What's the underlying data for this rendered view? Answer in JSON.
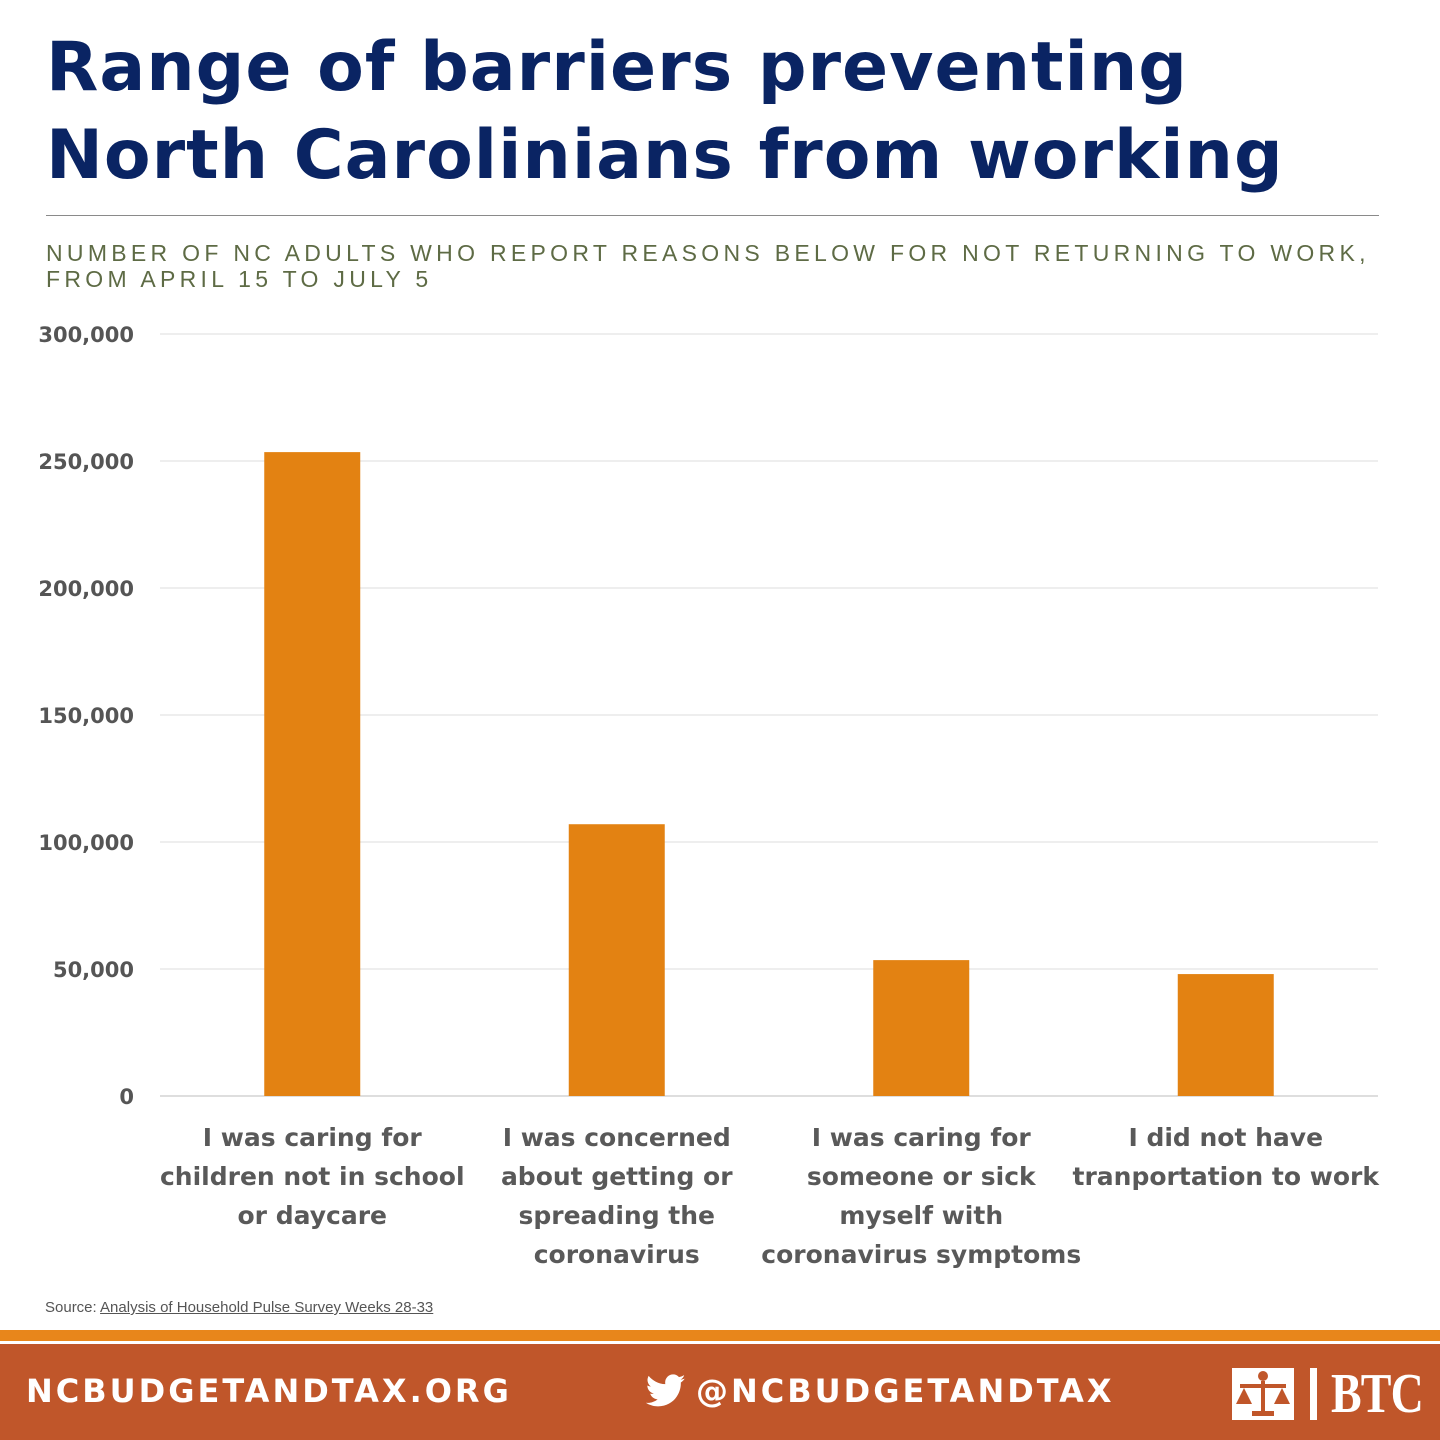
{
  "title_line1": "Range of barriers preventing",
  "title_line2": "North Carolinians from working",
  "subtitle": "Number of NC adults who report reasons below for not returning to work, from April 15 to July 5",
  "chart_data": {
    "type": "bar",
    "title": "",
    "xlabel": "",
    "ylabel": "",
    "ylim": [
      0,
      300000
    ],
    "yticks": [
      0,
      50000,
      100000,
      150000,
      200000,
      250000,
      300000
    ],
    "ytick_labels": [
      "0",
      "50,000",
      "100,000",
      "150,000",
      "200,000",
      "250,000",
      "300,000"
    ],
    "grid": true,
    "bar_color": "#e38212",
    "categories": [
      [
        "I was caring for",
        "children not in school",
        "or daycare"
      ],
      [
        "I was concerned",
        "about getting or",
        "spreading the",
        "coronavirus"
      ],
      [
        "I was caring for",
        "someone or sick",
        "myself with",
        "coronavirus symptoms"
      ],
      [
        "I did not have",
        "tranportation to work"
      ]
    ],
    "values": [
      253500,
      107000,
      53500,
      48000
    ]
  },
  "source": {
    "prefix": "Source: ",
    "link_text": "Analysis of Household Pulse Survey Weeks 28-33"
  },
  "footer": {
    "site": "NCBUDGETANDTAX.ORG",
    "handle": "@NCBUDGETANDTAX",
    "logo_text": "BTC",
    "twitter_icon": "twitter-bird-icon",
    "logo_icon": "scales-of-justice-logo-icon",
    "bg_color": "#c0562a",
    "stripe_color": "#e8861b"
  }
}
